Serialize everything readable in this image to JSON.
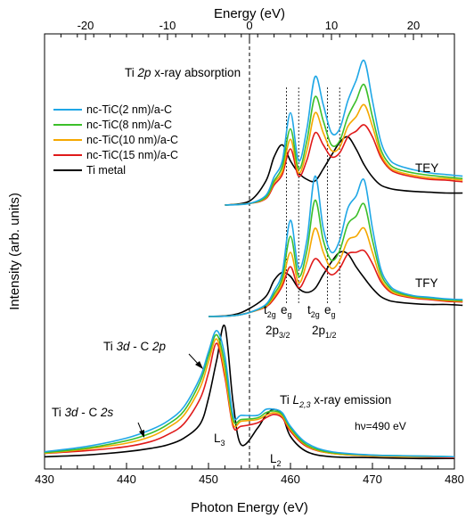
{
  "chart_data": {
    "type": "line",
    "xlabel": "Photon Energy (eV)",
    "xlabel_top": "Energy (eV)",
    "ylabel": "Intensity (arb. units)",
    "xlim": [
      430,
      480
    ],
    "xlim_top": [
      -25,
      25
    ],
    "x_ticks": [
      "430",
      "440",
      "450",
      "460",
      "470",
      "480"
    ],
    "x_ticks_top": [
      "-20",
      "-10",
      "0",
      "10",
      "20"
    ],
    "x_tick_values": [
      430,
      440,
      450,
      460,
      470,
      480
    ],
    "x_tick_values_top": [
      -20,
      -10,
      0,
      10,
      20
    ],
    "zero_line_top": 0,
    "grid": false,
    "legend_placement": "upper-left",
    "series": [
      {
        "name": "nc-TiC(2 nm)/a-C",
        "color": "#1fa7e6"
      },
      {
        "name": "nc-TiC(8 nm)/a-C",
        "color": "#3cbf2a"
      },
      {
        "name": "nc-TiC(10 nm)/a-C",
        "color": "#f5a800"
      },
      {
        "name": "nc-TiC(15 nm)/a-C",
        "color": "#e01a1a"
      },
      {
        "name": "Ti metal",
        "color": "#000000"
      }
    ],
    "panels": {
      "TEY": {
        "x": [
          -3,
          0,
          2,
          3,
          4,
          5,
          6,
          7,
          8,
          9,
          10,
          11,
          12,
          13,
          14,
          15,
          16,
          17,
          18,
          20,
          22,
          24,
          26
        ],
        "values": [
          [
            0.0,
            0.02,
            0.12,
            0.35,
            0.55,
            1.15,
            0.55,
            0.95,
            1.6,
            1.25,
            0.9,
            0.95,
            1.3,
            1.55,
            1.8,
            1.3,
            0.8,
            0.58,
            0.5,
            0.44,
            0.4,
            0.38,
            0.36
          ],
          [
            0.0,
            0.02,
            0.1,
            0.3,
            0.48,
            0.95,
            0.45,
            0.8,
            1.35,
            1.05,
            0.75,
            0.8,
            1.1,
            1.3,
            1.5,
            1.1,
            0.7,
            0.52,
            0.45,
            0.4,
            0.37,
            0.35,
            0.33
          ],
          [
            0.0,
            0.02,
            0.09,
            0.28,
            0.42,
            0.82,
            0.4,
            0.68,
            1.15,
            0.9,
            0.68,
            0.72,
            0.98,
            1.1,
            1.25,
            0.98,
            0.64,
            0.48,
            0.42,
            0.37,
            0.34,
            0.33,
            0.31
          ],
          [
            0.0,
            0.02,
            0.08,
            0.25,
            0.38,
            0.7,
            0.36,
            0.56,
            0.9,
            0.75,
            0.6,
            0.65,
            0.85,
            0.92,
            1.0,
            0.85,
            0.6,
            0.46,
            0.4,
            0.35,
            0.32,
            0.31,
            0.29
          ],
          [
            0.0,
            0.05,
            0.3,
            0.6,
            0.75,
            0.55,
            0.4,
            0.32,
            0.3,
            0.45,
            0.62,
            0.78,
            0.85,
            0.7,
            0.5,
            0.35,
            0.25,
            0.21,
            0.19,
            0.17,
            0.16,
            0.15,
            0.15
          ]
        ]
      },
      "TFY": {
        "x": [
          -5,
          -2,
          0,
          2,
          3,
          4,
          5,
          6,
          7,
          8,
          9,
          10,
          11,
          12,
          13,
          14,
          15,
          16,
          17,
          18,
          20,
          22,
          24,
          26
        ],
        "values": [
          [
            0.0,
            0.01,
            0.05,
            0.15,
            0.32,
            0.55,
            1.2,
            0.6,
            0.95,
            1.75,
            1.1,
            0.8,
            0.95,
            1.35,
            1.5,
            1.7,
            1.1,
            0.6,
            0.4,
            0.32,
            0.26,
            0.24,
            0.22,
            0.21
          ],
          [
            0.0,
            0.01,
            0.05,
            0.14,
            0.28,
            0.48,
            1.0,
            0.5,
            0.82,
            1.45,
            0.95,
            0.7,
            0.82,
            1.15,
            1.25,
            1.4,
            0.95,
            0.54,
            0.37,
            0.3,
            0.25,
            0.23,
            0.21,
            0.2
          ],
          [
            0.0,
            0.01,
            0.05,
            0.13,
            0.25,
            0.42,
            0.8,
            0.42,
            0.68,
            1.1,
            0.8,
            0.6,
            0.7,
            0.95,
            1.0,
            1.1,
            0.8,
            0.48,
            0.34,
            0.28,
            0.24,
            0.22,
            0.2,
            0.19
          ],
          [
            0.0,
            0.01,
            0.05,
            0.12,
            0.22,
            0.38,
            0.62,
            0.36,
            0.52,
            0.72,
            0.62,
            0.52,
            0.6,
            0.78,
            0.8,
            0.82,
            0.66,
            0.44,
            0.32,
            0.27,
            0.23,
            0.21,
            0.19,
            0.18
          ],
          [
            0.0,
            0.02,
            0.1,
            0.25,
            0.45,
            0.55,
            0.5,
            0.35,
            0.3,
            0.35,
            0.52,
            0.68,
            0.8,
            0.78,
            0.62,
            0.48,
            0.35,
            0.25,
            0.2,
            0.18,
            0.16,
            0.15,
            0.15,
            0.14
          ]
        ]
      },
      "emission": {
        "x": [
          430,
          435,
          440,
          443,
          445,
          447,
          449,
          450,
          451,
          452,
          453,
          454,
          456,
          457,
          458,
          459,
          460,
          462,
          465,
          470,
          475,
          480
        ],
        "values": [
          [
            0.12,
            0.18,
            0.28,
            0.38,
            0.48,
            0.65,
            1.0,
            1.3,
            1.55,
            1.25,
            0.55,
            0.55,
            0.55,
            0.62,
            0.62,
            0.58,
            0.42,
            0.22,
            0.12,
            0.08,
            0.07,
            0.06
          ],
          [
            0.11,
            0.16,
            0.25,
            0.34,
            0.44,
            0.6,
            0.95,
            1.25,
            1.5,
            1.15,
            0.5,
            0.5,
            0.52,
            0.58,
            0.6,
            0.56,
            0.4,
            0.2,
            0.11,
            0.08,
            0.07,
            0.06
          ],
          [
            0.1,
            0.15,
            0.22,
            0.3,
            0.4,
            0.55,
            0.88,
            1.18,
            1.45,
            1.05,
            0.45,
            0.48,
            0.5,
            0.55,
            0.58,
            0.54,
            0.38,
            0.19,
            0.1,
            0.07,
            0.06,
            0.06
          ],
          [
            0.1,
            0.13,
            0.18,
            0.24,
            0.32,
            0.45,
            0.75,
            1.05,
            1.4,
            1.0,
            0.42,
            0.42,
            0.46,
            0.52,
            0.56,
            0.52,
            0.36,
            0.18,
            0.1,
            0.07,
            0.06,
            0.05
          ],
          [
            0.06,
            0.08,
            0.12,
            0.16,
            0.2,
            0.28,
            0.45,
            0.75,
            1.2,
            1.6,
            0.7,
            0.2,
            0.4,
            0.55,
            0.62,
            0.55,
            0.3,
            0.12,
            0.06,
            0.05,
            0.04,
            0.04
          ]
        ]
      }
    },
    "annotations": {
      "absorption_title_pre": "Ti ",
      "absorption_title_ital": "2p",
      "absorption_title_post": " x-ray absorption",
      "tey": "TEY",
      "tfy": "TFY",
      "t2g": "t",
      "t2g_sub": "2g",
      "eg": "e",
      "eg_sub": "g",
      "p32": "2p",
      "p32_sub": "3/2",
      "p12": "2p",
      "p12_sub": "1/2",
      "ti3d_c2p_pre": "Ti ",
      "ti3d_c2p_i1": "3d",
      "ti3d_c2p_mid": " - C ",
      "ti3d_c2p_i2": "2p",
      "ti3d_c2s_pre": "Ti ",
      "ti3d_c2s_i1": "3d",
      "ti3d_c2s_mid": " - C ",
      "ti3d_c2s_i2": "2s",
      "l3": "L",
      "l3_sub": "3",
      "l2": "L",
      "l2_sub": "2",
      "emission_title_pre": "Ti ",
      "emission_title_ital": "L",
      "emission_title_sub": "2,3",
      "emission_title_post": " x-ray emission",
      "hv": "hν=490 eV"
    },
    "marker_energies": [
      4.5,
      6.0,
      9.5,
      11.0
    ]
  }
}
